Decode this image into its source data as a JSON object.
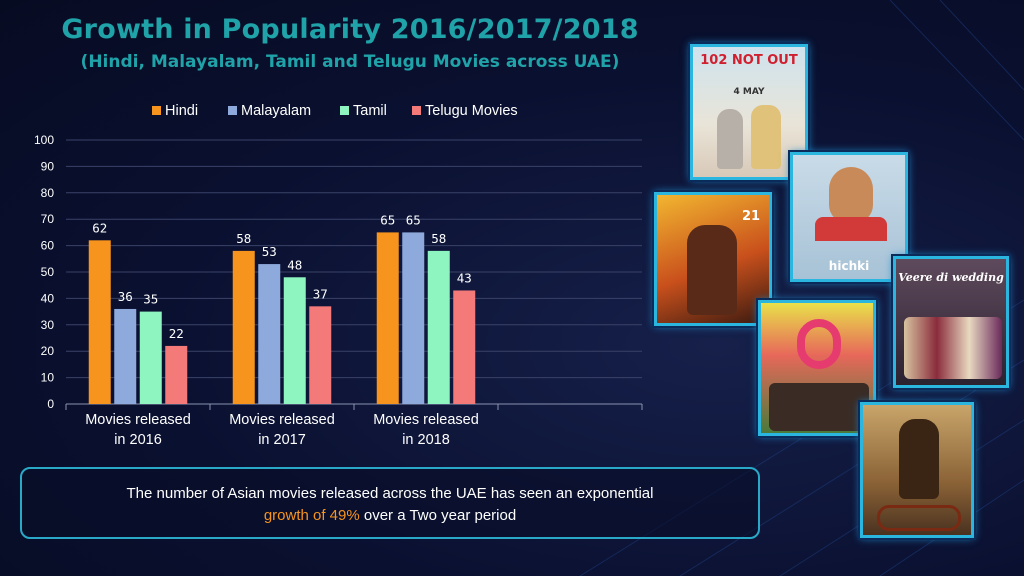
{
  "title": "Growth in Popularity 2016/2017/2018",
  "subtitle": "(Hindi, Malayalam, Tamil and Telugu Movies across UAE)",
  "callout": {
    "line1": "The number of Asian movies released across the UAE has seen an exponential",
    "highlight": "growth of 49%",
    "line2_rest": " over a Two year period"
  },
  "posters": {
    "p1_text": "102 NOT OUT",
    "p1_date": "4 MAY",
    "p2_text": "hichki",
    "p3_text": "21",
    "p4_text": "Veere di wedding"
  },
  "colors": {
    "hindi": "#f7941d",
    "malayalam": "#8ea9db",
    "tamil": "#8ff5c0",
    "telugu": "#f47a7a",
    "accent": "#1fa2a8"
  },
  "chart_data": {
    "type": "bar",
    "categories": [
      [
        "Movies released",
        "in 2016"
      ],
      [
        "Movies released",
        "in 2017"
      ],
      [
        "Movies released",
        "in 2018"
      ],
      [
        "",
        ""
      ]
    ],
    "series": [
      {
        "name": "Hindi",
        "values": [
          62,
          58,
          65,
          null
        ]
      },
      {
        "name": "Malayalam",
        "values": [
          36,
          53,
          65,
          null
        ]
      },
      {
        "name": "Tamil",
        "values": [
          35,
          48,
          58,
          null
        ]
      },
      {
        "name": "Telugu Movies",
        "values": [
          22,
          37,
          43,
          null
        ]
      }
    ],
    "ylim": [
      0,
      100
    ],
    "yticks": [
      0,
      10,
      20,
      30,
      40,
      50,
      60,
      70,
      80,
      90,
      100
    ],
    "grid": true,
    "legend": "top",
    "data_labels": true
  }
}
